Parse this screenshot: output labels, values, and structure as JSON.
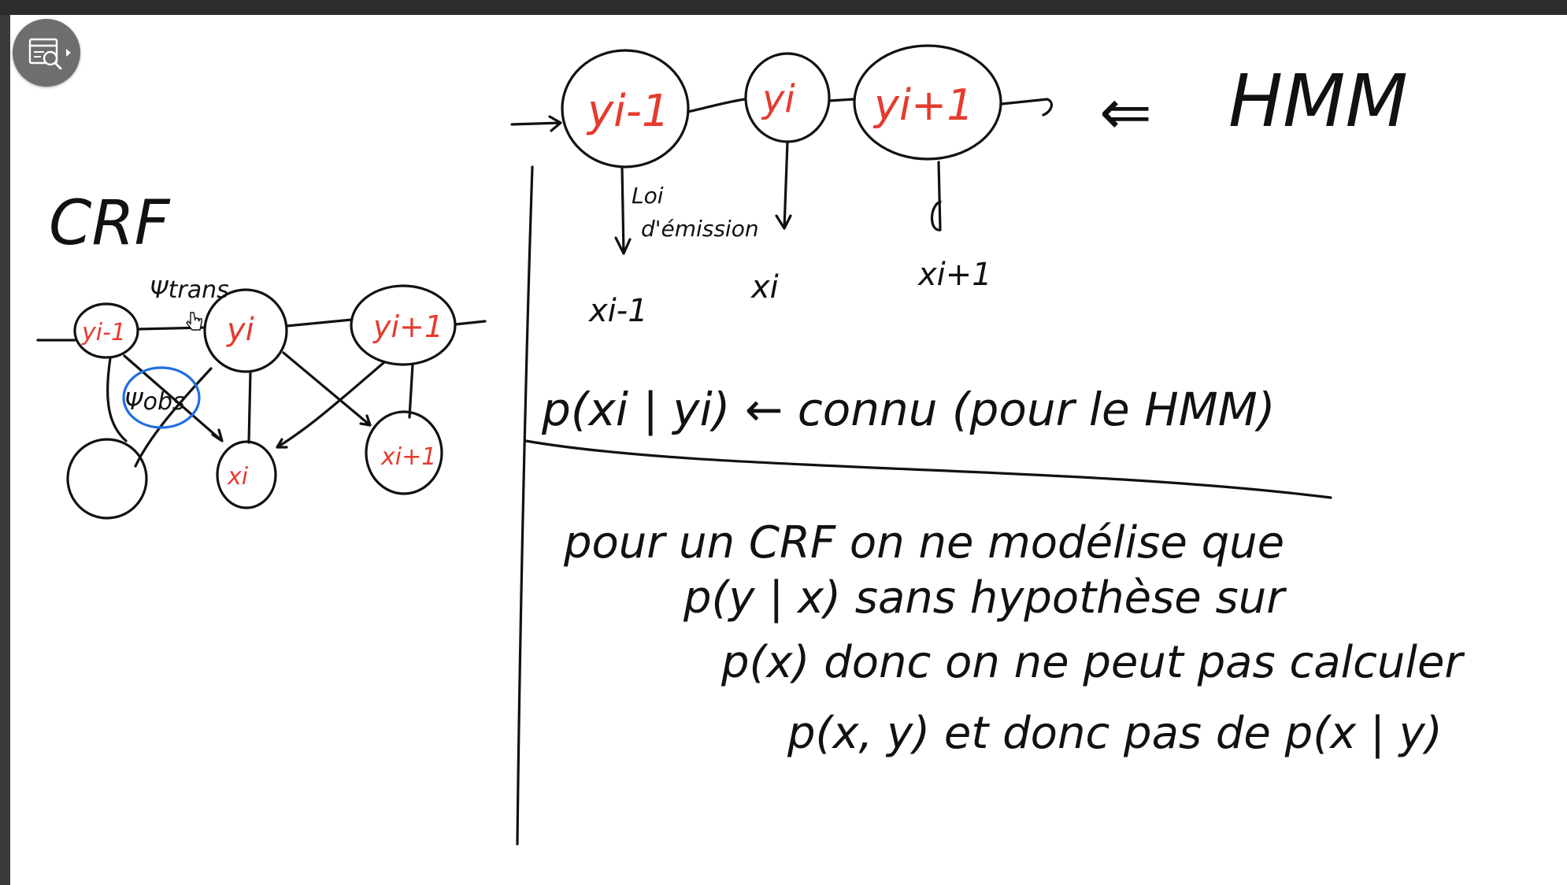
{
  "toolbar": {
    "tool_icon": "search-document-icon"
  },
  "crf": {
    "title": "CRF",
    "psi_trans": "Ψtrans",
    "psi_obs": "Ψobs",
    "nodes": {
      "y_prev": "yi-1",
      "y_i": "yi",
      "y_next": "yi+1",
      "x_i": "xi",
      "x_next": "xi+1"
    }
  },
  "hmm": {
    "label": "HMM",
    "arrow_text": "⇐",
    "nodes": {
      "y_prev": "yi-1",
      "y_i": "yi",
      "y_next": "yi+1"
    },
    "emission_label_1": "Loi",
    "emission_label_2": "d'émission",
    "obs": {
      "x_prev": "xi-1",
      "x_i": "xi",
      "x_next": "xi+1"
    },
    "note": "p(xi | yi) ← connu (pour le HMM)"
  },
  "notes": {
    "line1": "pour un CRF on ne modélise que",
    "line2": "p(y | x)   sans hypothèse sur",
    "line3": "p(x) donc on ne peut pas calculer",
    "line4": "p(x, y)   et donc pas de p(x | y)"
  }
}
